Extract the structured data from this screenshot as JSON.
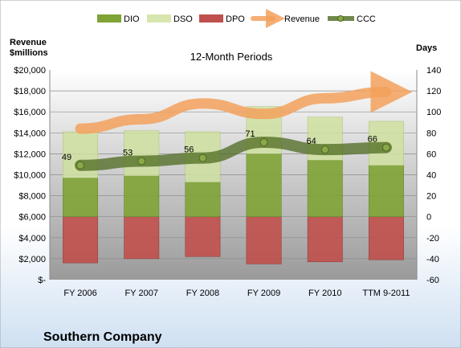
{
  "chart_data": {
    "type": "bar",
    "title": "12-Month Periods",
    "company": "Southern Company",
    "left_axis_label_line1": "Revenue",
    "left_axis_label_line2": "$millions",
    "right_axis_label": "Days",
    "categories": [
      "FY 2006",
      "FY 2007",
      "FY 2008",
      "FY 2009",
      "FY 2010",
      "TTM 9-2011"
    ],
    "left_ticks": [
      "$20,000",
      "$18,000",
      "$16,000",
      "$14,000",
      "$12,000",
      "$10,000",
      "$8,000",
      "$6,000",
      "$4,000",
      "$2,000",
      "$-"
    ],
    "right_ticks": [
      "140",
      "120",
      "100",
      "80",
      "60",
      "40",
      "20",
      "0",
      "-20",
      "-40",
      "-60"
    ],
    "left_ylim": [
      0,
      20000
    ],
    "right_ylim": [
      -60,
      140
    ],
    "legend": [
      "DIO",
      "DSO",
      "DPO",
      "Revenue",
      "CCC"
    ],
    "legend_position": "top",
    "grid": true,
    "series": [
      {
        "name": "DIO",
        "axis": "days",
        "color": "#7fa335",
        "values": [
          37,
          39,
          33,
          60,
          54,
          49
        ]
      },
      {
        "name": "DSO",
        "axis": "days",
        "color": "#cfe0a0",
        "values": [
          44,
          43,
          48,
          45,
          41,
          42
        ]
      },
      {
        "name": "DPO",
        "axis": "days",
        "color": "#c0504d",
        "values": [
          -44,
          -40,
          -38,
          -45,
          -43,
          -41
        ]
      },
      {
        "name": "Revenue",
        "axis": "revenue",
        "color": "#f0a060",
        "values": [
          14400,
          15300,
          16800,
          15800,
          17300,
          17900
        ]
      },
      {
        "name": "CCC",
        "axis": "days",
        "color": "#4d6a1f",
        "values": [
          49,
          53,
          56,
          71,
          64,
          66
        ]
      }
    ],
    "ccc_labels": [
      "49",
      "53",
      "56",
      "71",
      "64",
      "66"
    ]
  }
}
